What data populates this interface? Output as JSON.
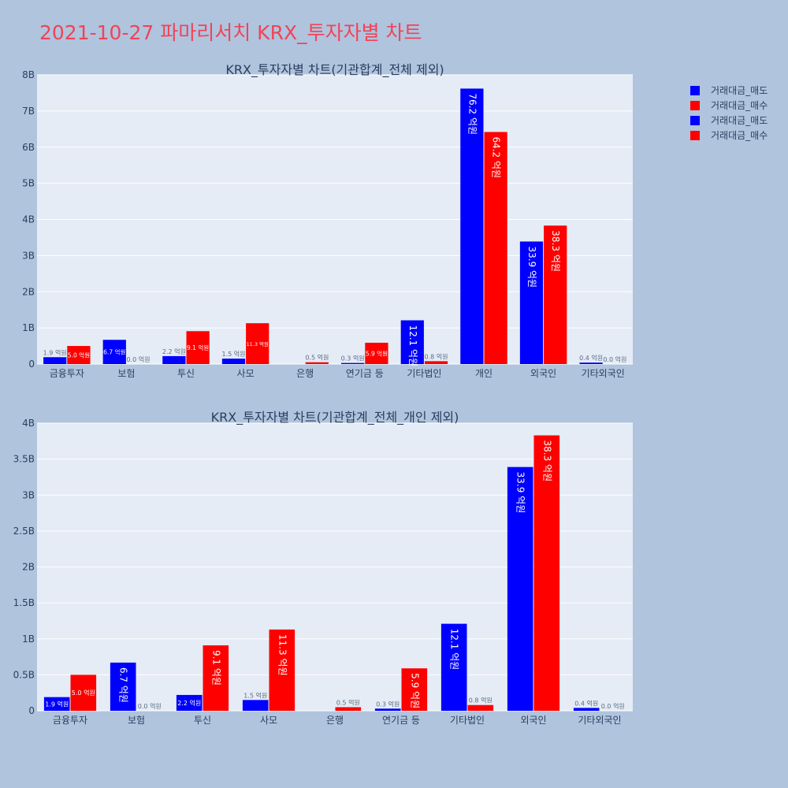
{
  "page": {
    "title": "2021-10-27 파마리서치 KRX_투자자별 차트"
  },
  "legend": [
    {
      "name": "거래대금_매도",
      "color": "#0000ff"
    },
    {
      "name": "거래대금_매수",
      "color": "#ff0000"
    },
    {
      "name": "거래대금_매도",
      "color": "#0000ff"
    },
    {
      "name": "거래대금_매수",
      "color": "#ff0000"
    }
  ],
  "chart_data": [
    {
      "type": "bar",
      "title": "KRX_투자자별 차트(기관합계_전체 제외)",
      "categories": [
        "금융투자",
        "보험",
        "투신",
        "사모",
        "은행",
        "연기금 등",
        "기타법인",
        "개인",
        "외국인",
        "기타외국인"
      ],
      "series": [
        {
          "name": "거래대금_매도",
          "color": "#0000ff",
          "values": [
            0.19,
            0.67,
            0.22,
            0.15,
            0.0,
            0.03,
            1.21,
            7.62,
            3.39,
            0.04
          ],
          "labels": [
            "1.9 억원",
            "6.7 억원",
            "2.2 억원",
            "1.5 억원",
            "",
            "0.3 억원",
            "12.1 억원",
            "76.2 억원",
            "33.9 억원",
            "0.4 억원"
          ]
        },
        {
          "name": "거래대금_매수",
          "color": "#ff0000",
          "values": [
            0.5,
            0.0,
            0.91,
            1.13,
            0.05,
            0.59,
            0.08,
            6.42,
            3.83,
            0.0
          ],
          "labels": [
            "5.0 억원",
            "0.0 억원",
            "9.1 억원",
            "11.3 억원",
            "0.5 억원",
            "5.9 억원",
            "0.8 억원",
            "64.2 억원",
            "38.3 억원",
            "0.0 억원"
          ]
        }
      ],
      "ylim": [
        0,
        8
      ],
      "yticks": [
        0,
        1,
        2,
        3,
        4,
        5,
        6,
        7,
        8
      ],
      "yticklabels": [
        "0",
        "1B",
        "2B",
        "3B",
        "4B",
        "5B",
        "6B",
        "7B",
        "8B"
      ],
      "grid": true,
      "legend_position": "top-right"
    },
    {
      "type": "bar",
      "title": "KRX_투자자별 차트(기관합계_전체_개인 제외)",
      "categories": [
        "금융투자",
        "보험",
        "투신",
        "사모",
        "은행",
        "연기금 등",
        "기타법인",
        "외국인",
        "기타외국인"
      ],
      "series": [
        {
          "name": "거래대금_매도",
          "color": "#0000ff",
          "values": [
            0.19,
            0.67,
            0.22,
            0.15,
            0.0,
            0.03,
            1.21,
            3.39,
            0.04
          ],
          "labels": [
            "1.9 억원",
            "6.7 억원",
            "2.2 억원",
            "1.5 억원",
            "",
            "0.3 억원",
            "12.1 억원",
            "33.9 억원",
            "0.4 억원"
          ]
        },
        {
          "name": "거래대금_매수",
          "color": "#ff0000",
          "values": [
            0.5,
            0.0,
            0.91,
            1.13,
            0.05,
            0.59,
            0.08,
            3.83,
            0.0
          ],
          "labels": [
            "5.0 억원",
            "0.0 억원",
            "9.1 억원",
            "11.3 억원",
            "0.5 억원",
            "5.9 억원",
            "0.8 억원",
            "38.3 억원",
            "0.0 억원"
          ]
        }
      ],
      "ylim": [
        0,
        4
      ],
      "yticks": [
        0,
        0.5,
        1,
        1.5,
        2,
        2.5,
        3,
        3.5,
        4
      ],
      "yticklabels": [
        "0",
        "0.5B",
        "1B",
        "1.5B",
        "2B",
        "2.5B",
        "3B",
        "3.5B",
        "4B"
      ],
      "grid": true,
      "legend_position": "top-right"
    }
  ]
}
